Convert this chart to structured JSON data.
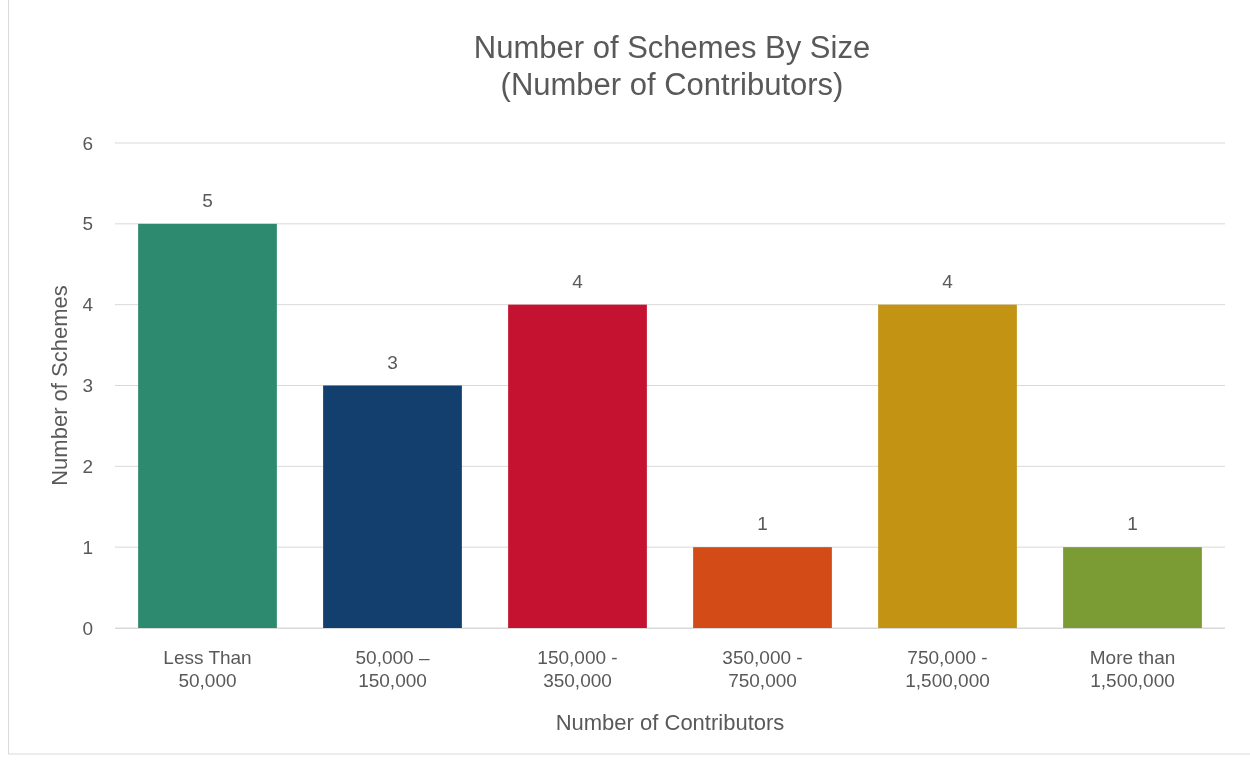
{
  "chart_data": {
    "type": "bar",
    "title": "Number of Schemes By Size\n(Number of Contributors)",
    "xlabel": "Number of Contributors",
    "ylabel": "Number of Schemes",
    "categories": [
      "Less Than\n50,000",
      "50,000 –\n150,000",
      "150,000 -\n350,000",
      "350,000 -\n750,000",
      "750,000 -\n1,500,000",
      "More than\n1,500,000"
    ],
    "values": [
      5,
      3,
      4,
      1,
      4,
      1
    ],
    "colors": [
      "#2e8a6e",
      "#123f6e",
      "#c41230",
      "#d34b17",
      "#c39314",
      "#7b9b35"
    ],
    "ylim": [
      0,
      6
    ],
    "yticks": [
      0,
      1,
      2,
      3,
      4,
      5,
      6
    ],
    "grid": "y",
    "data_labels": true
  }
}
